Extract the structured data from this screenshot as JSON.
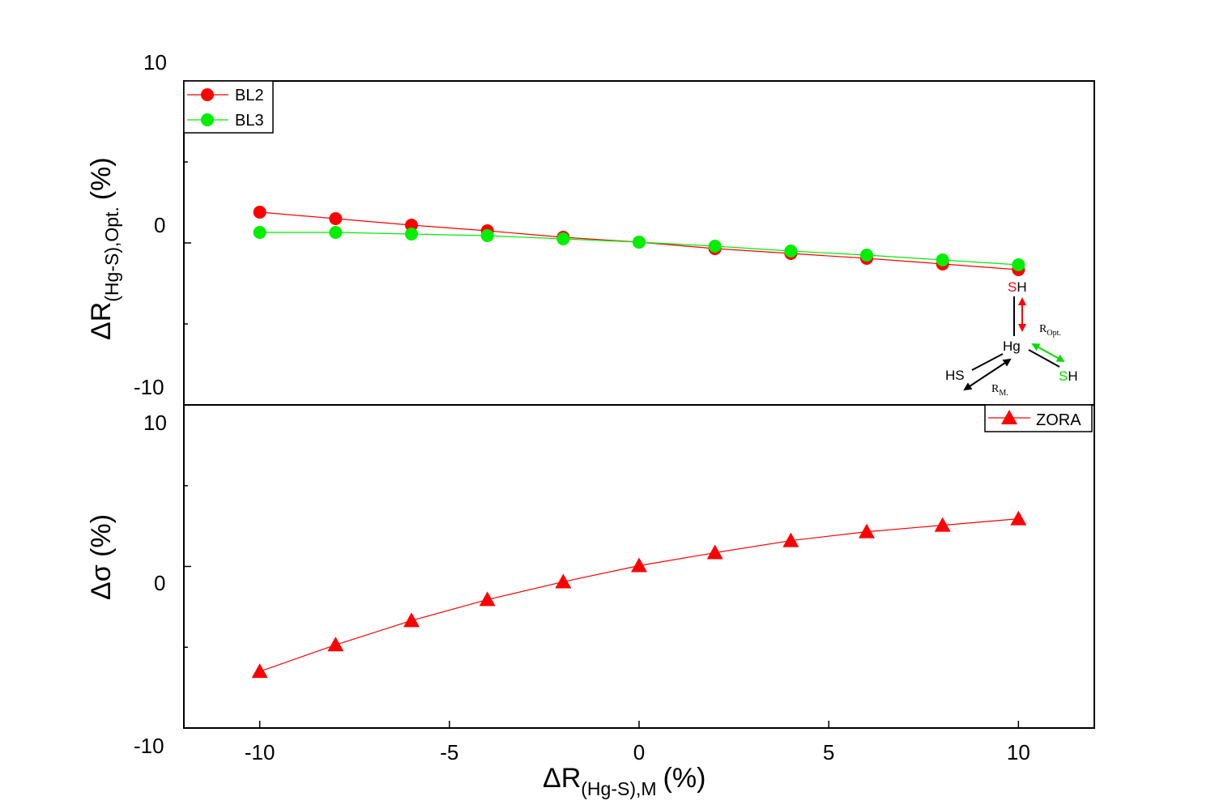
{
  "chart_data": [
    {
      "type": "line",
      "panel": "top",
      "ylabel_main": "ΔR",
      "ylabel_sub": "(Hg-S),Opt.",
      "ylabel_unit": "(%)",
      "ylim": [
        -10,
        10
      ],
      "y_ticks": [
        "10",
        "0",
        "-10"
      ],
      "series": [
        {
          "name": "BL2",
          "color": "#ff0000",
          "marker": "circle",
          "x": [
            -10,
            -8,
            -6,
            -4,
            -2,
            0,
            2,
            4,
            6,
            8,
            10
          ],
          "y": [
            1.9,
            1.5,
            1.1,
            0.75,
            0.35,
            0.05,
            -0.35,
            -0.65,
            -0.95,
            -1.3,
            -1.65
          ]
        },
        {
          "name": "BL3",
          "color": "#00ee00",
          "marker": "circle",
          "x": [
            -10,
            -8,
            -6,
            -4,
            -2,
            0,
            2,
            4,
            6,
            8,
            10
          ],
          "y": [
            0.65,
            0.65,
            0.55,
            0.45,
            0.25,
            0.05,
            -0.2,
            -0.5,
            -0.75,
            -1.05,
            -1.35
          ]
        }
      ],
      "inset": {
        "labels": {
          "sh_top_s": "S",
          "sh_top_h": "H",
          "hg": "Hg",
          "hs": "HS",
          "sh_right_s": "S",
          "sh_right_h": "H",
          "r_opt_main": "R",
          "r_opt_sub": "Opt.",
          "r_m_main": "R",
          "r_m_sub": "M."
        },
        "colors": {
          "s_red": "#ff0000",
          "s_green": "#00dd00",
          "arrow_red": "#ff0000",
          "arrow_green": "#00dd00",
          "arrow_black": "#000000"
        }
      }
    },
    {
      "type": "line",
      "panel": "bottom",
      "ylabel": "Δσ (%)",
      "ylim": [
        -10,
        10
      ],
      "y_ticks": [
        "10",
        "0",
        "-10"
      ],
      "series": [
        {
          "name": "ZORA",
          "color": "#ff0000",
          "marker": "triangle",
          "x": [
            -10,
            -8,
            -6,
            -4,
            -2,
            0,
            2,
            4,
            6,
            8,
            10
          ],
          "y": [
            -6.5,
            -4.85,
            -3.35,
            -2.05,
            -0.95,
            0.05,
            0.85,
            1.6,
            2.15,
            2.55,
            2.95
          ]
        }
      ]
    }
  ],
  "x_axis": {
    "label_main": "ΔR",
    "label_sub": "(Hg-S),M",
    "label_unit": "(%)",
    "xlim": [
      -12,
      12
    ],
    "ticks": [
      "-10",
      "-5",
      "0",
      "5",
      "10"
    ],
    "tick_values": [
      -10,
      -5,
      0,
      5,
      10
    ]
  }
}
